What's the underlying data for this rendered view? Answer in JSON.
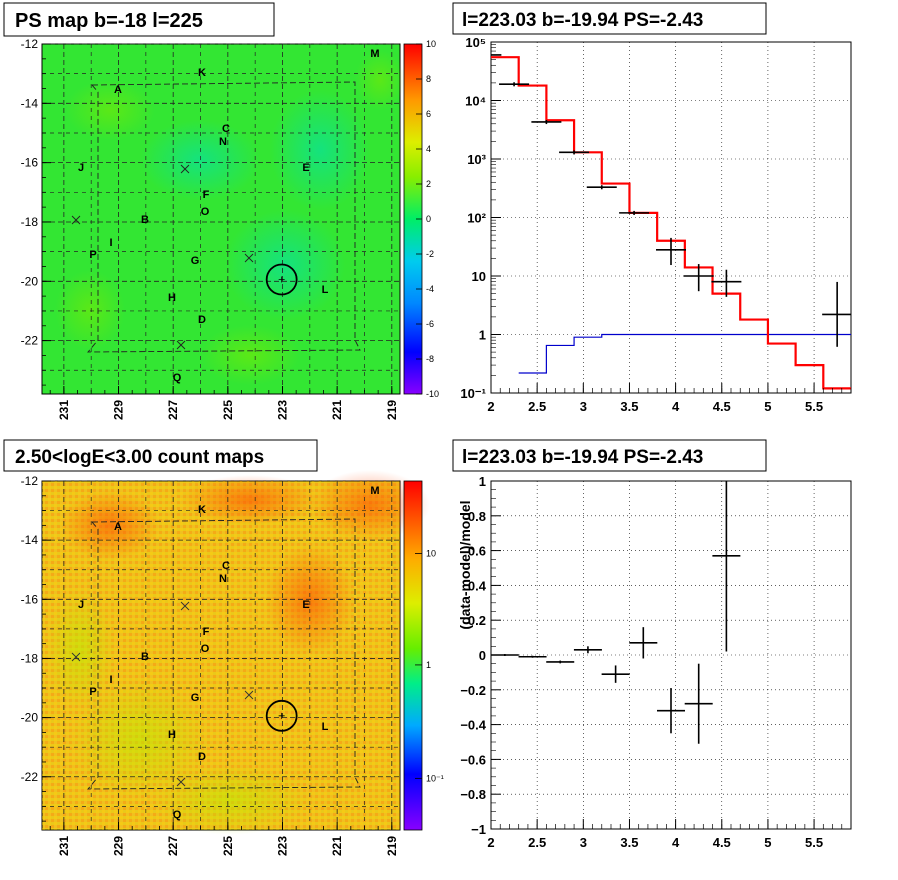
{
  "titles": {
    "map1": "PS map b=-18 l=225",
    "spec1": "l=223.03 b=-19.94 PS=-2.43",
    "map2": "2.50<logE<3.00 count maps",
    "spec2": "l=223.03 b=-19.94 PS=-2.43"
  },
  "chart_data": [
    {
      "type": "heatmap",
      "title": "PS map b=-18 l=225",
      "xlim": [
        231.8,
        218.7
      ],
      "ylim": [
        -23.8,
        -12.0
      ],
      "x_ticks": [
        "231",
        "229",
        "227",
        "225",
        "223",
        "221",
        "219"
      ],
      "y_ticks": [
        "-12",
        "-14",
        "-16",
        "-18",
        "-20",
        "-22"
      ],
      "colorbar_ticks": [
        "10",
        "8",
        "6",
        "4",
        "2",
        "0",
        "-2",
        "-4",
        "-6",
        "-8",
        "-10"
      ],
      "colorbar_range": [
        -10,
        10
      ],
      "labels": [
        "M",
        "K",
        "A",
        "C",
        "N",
        "J",
        "E",
        "F",
        "O",
        "B",
        "I",
        "P",
        "G",
        "H",
        "L",
        "D",
        "Q"
      ],
      "markers": [
        "x",
        "x",
        "x",
        "x"
      ],
      "circle": {
        "l": 223.03,
        "b": -19.94
      }
    },
    {
      "type": "bar",
      "title": "l=223.03 b=-19.94 PS=-2.43",
      "scale_y": "log",
      "xlim": [
        2.0,
        5.9
      ],
      "ylim": [
        0.1,
        100000
      ],
      "x_ticks": [
        "2",
        "2.5",
        "3",
        "3.5",
        "4",
        "4.5",
        "5",
        "5.5"
      ],
      "y_ticks": [
        "10⁻¹",
        "1",
        "10",
        "10²",
        "10³",
        "10⁴",
        "10⁵"
      ],
      "grid": true,
      "series": [
        {
          "role": "data",
          "color": "#000000",
          "points": [
            [
              1.95,
              60000
            ],
            [
              2.25,
              19000
            ],
            [
              2.6,
              4300
            ],
            [
              2.9,
              1300
            ],
            [
              3.2,
              330
            ],
            [
              3.55,
              120
            ],
            [
              3.95,
              28
            ],
            [
              4.25,
              10
            ],
            [
              4.55,
              8
            ],
            [
              5.75,
              2.2
            ]
          ]
        },
        {
          "role": "model",
          "color": "#ff0000",
          "steps": [
            [
              2.0,
              55000
            ],
            [
              2.3,
              18000
            ],
            [
              2.6,
              4600
            ],
            [
              2.9,
              1300
            ],
            [
              3.2,
              380
            ],
            [
              3.5,
              120
            ],
            [
              3.8,
              40
            ],
            [
              4.1,
              14
            ],
            [
              4.4,
              5
            ],
            [
              4.7,
              1.8
            ],
            [
              5.0,
              0.7
            ],
            [
              5.3,
              0.3
            ],
            [
              5.6,
              0.12
            ],
            [
              5.9,
              0.12
            ]
          ]
        },
        {
          "role": "ps",
          "color": "#0000cc",
          "steps": [
            [
              2.3,
              0.22
            ],
            [
              2.6,
              0.65
            ],
            [
              2.9,
              0.9
            ],
            [
              3.2,
              1.0
            ],
            [
              5.9,
              1.0
            ]
          ]
        }
      ]
    },
    {
      "type": "heatmap",
      "title": "2.50<logE<3.00 count maps",
      "xlim": [
        231.8,
        218.7
      ],
      "ylim": [
        -23.8,
        -12.0
      ],
      "x_ticks": [
        "231",
        "229",
        "227",
        "225",
        "223",
        "221",
        "219"
      ],
      "y_ticks": [
        "-12",
        "-14",
        "-16",
        "-18",
        "-20",
        "-22"
      ],
      "colorbar_scale": "log",
      "colorbar_ticks": [
        "10",
        "1",
        "10⁻¹"
      ]
    },
    {
      "type": "scatter",
      "title": "l=223.03 b=-19.94 PS=-2.43",
      "ylabel": "(data-model)/model",
      "xlim": [
        2.0,
        5.9
      ],
      "ylim": [
        -1.0,
        1.0
      ],
      "x_ticks": [
        "2",
        "2.5",
        "3",
        "3.5",
        "4",
        "4.5",
        "5",
        "5.5"
      ],
      "y_ticks": [
        "1",
        "0.8",
        "0.6",
        "0.4",
        "0.2",
        "0",
        "−0.2",
        "−0.4",
        "−0.6",
        "−0.8",
        "−1"
      ],
      "grid": true,
      "points": [
        {
          "x": 2.15,
          "y": 0.0,
          "yerr": 0.003
        },
        {
          "x": 2.45,
          "y": -0.01,
          "yerr": 0.005
        },
        {
          "x": 2.75,
          "y": -0.04,
          "yerr": 0.008
        },
        {
          "x": 3.05,
          "y": 0.03,
          "yerr": 0.02
        },
        {
          "x": 3.35,
          "y": -0.11,
          "yerr": 0.05
        },
        {
          "x": 3.65,
          "y": 0.07,
          "yerr": 0.09
        },
        {
          "x": 3.95,
          "y": -0.32,
          "yerr": 0.13
        },
        {
          "x": 4.25,
          "y": -0.28,
          "yerr": 0.23
        },
        {
          "x": 4.55,
          "y": 0.57,
          "yerr": 0.55
        }
      ]
    }
  ]
}
